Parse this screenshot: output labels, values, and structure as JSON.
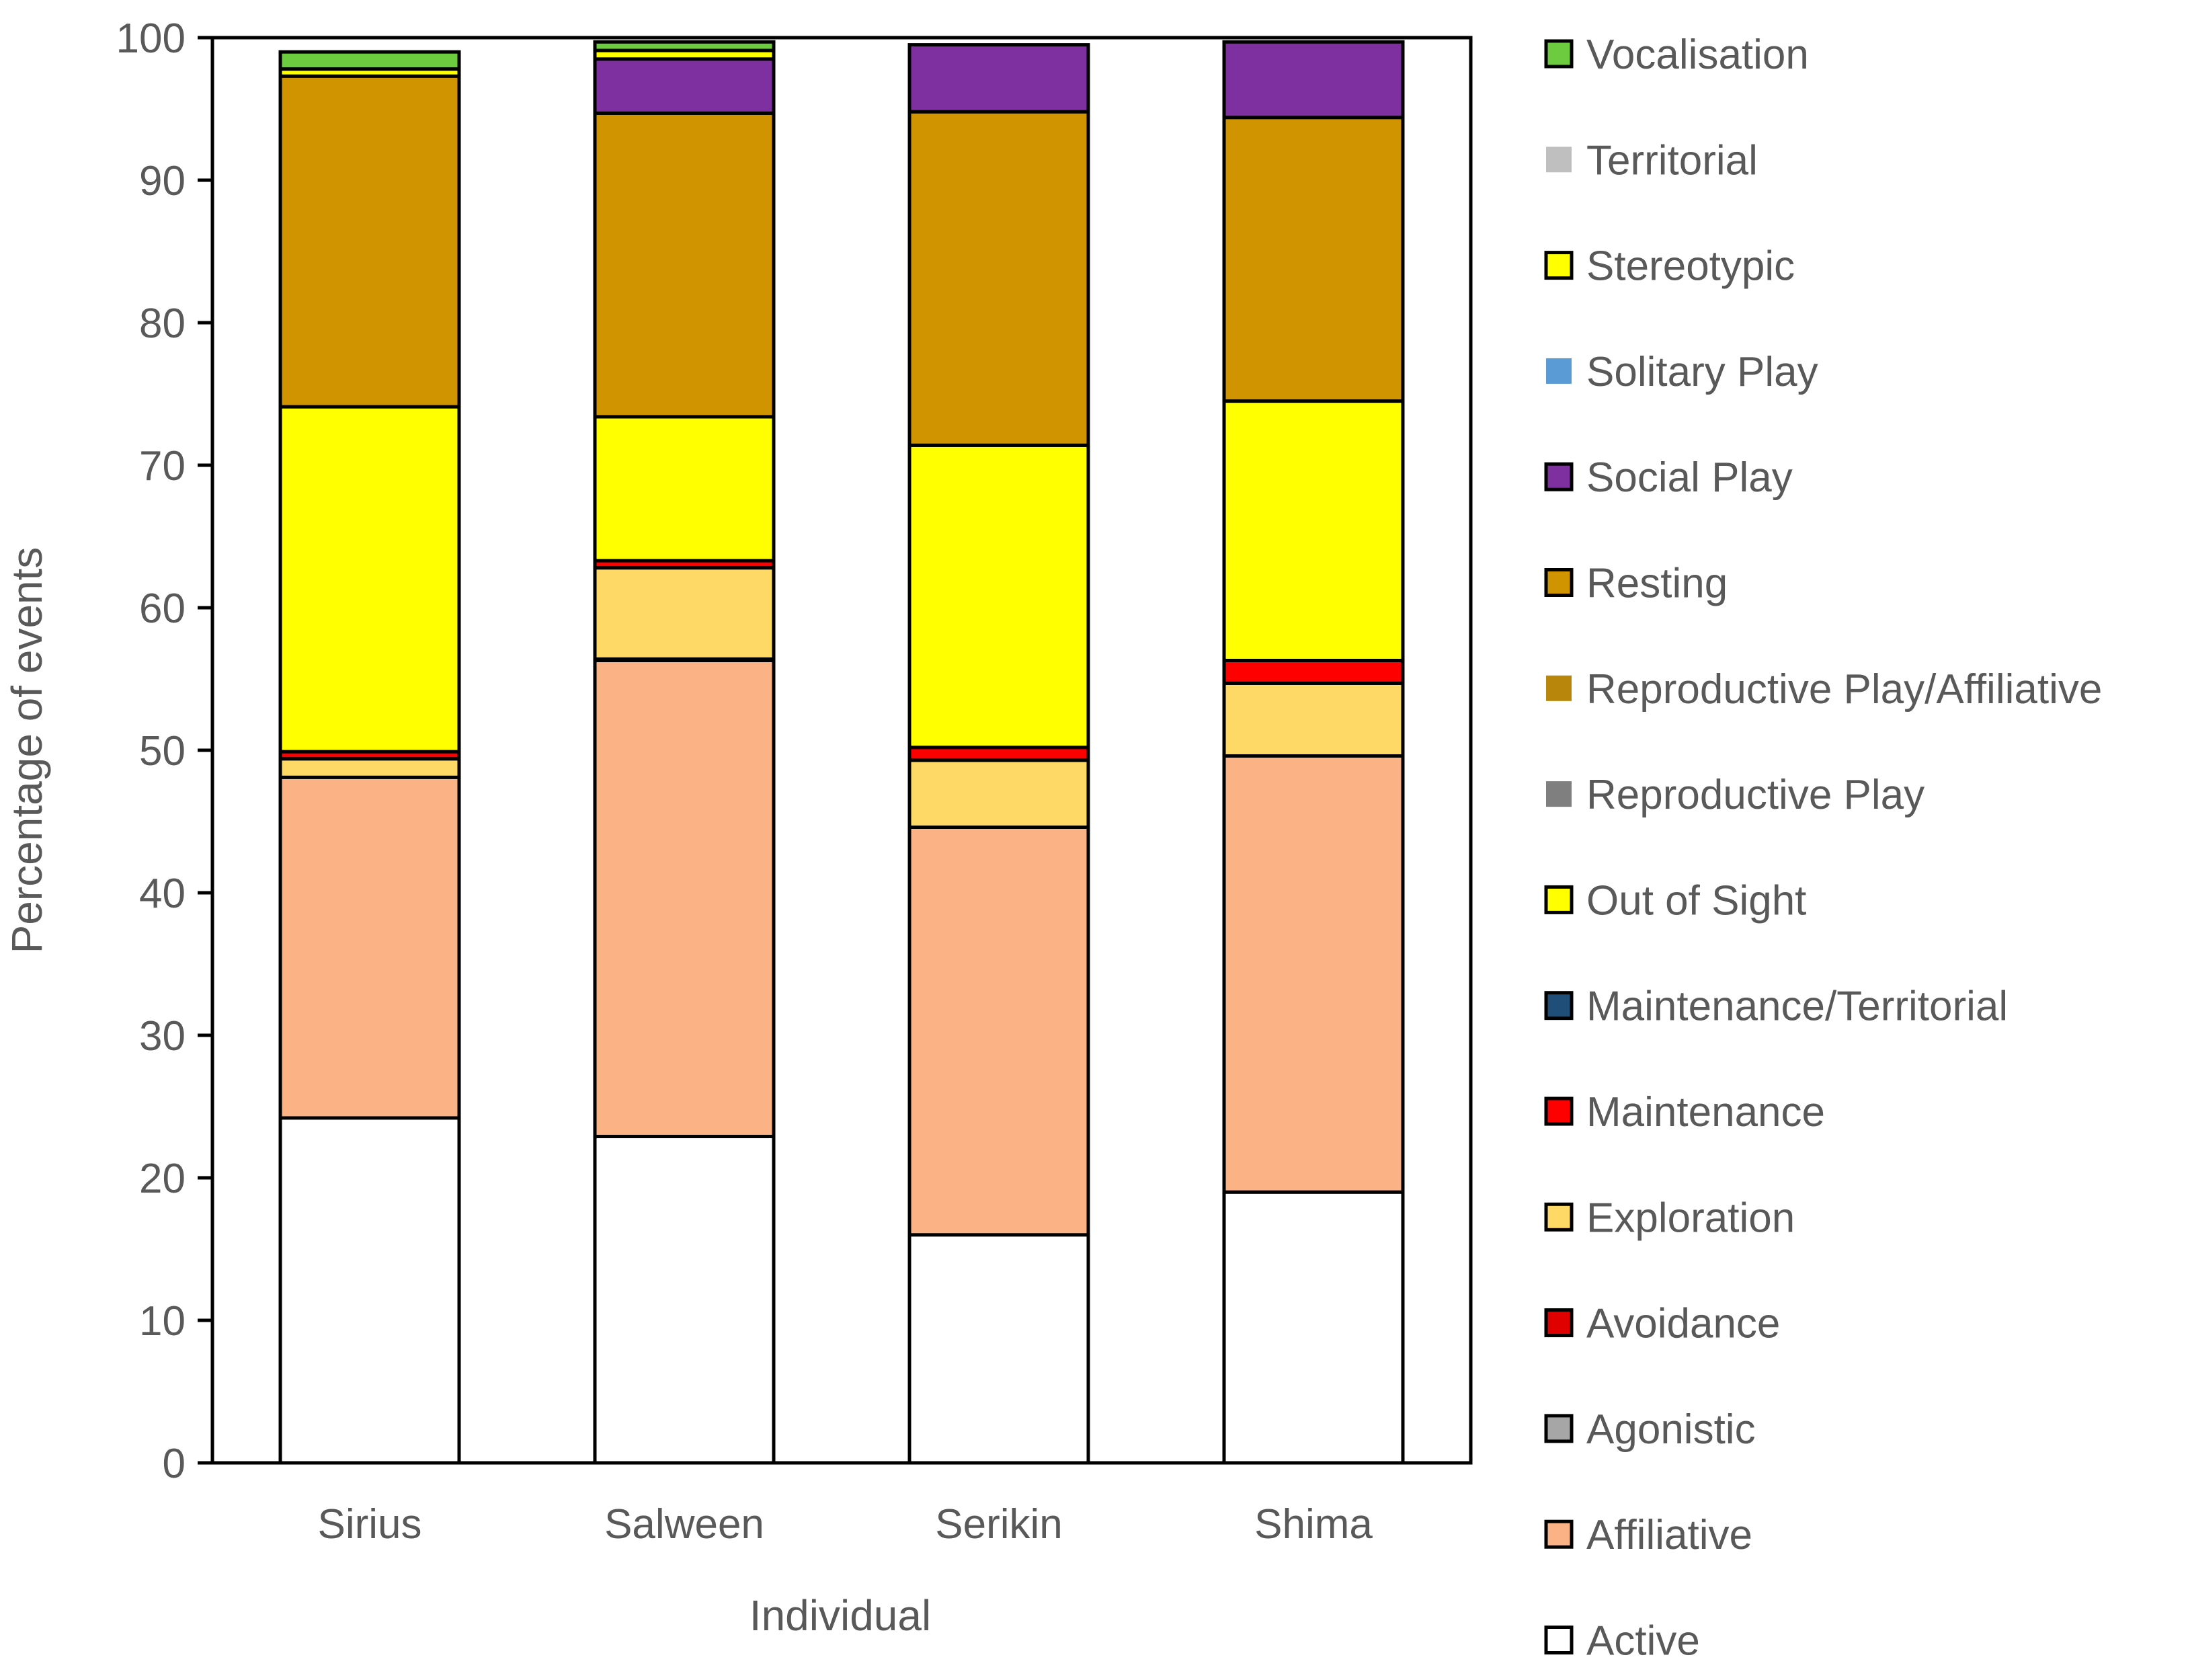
{
  "chart_data": {
    "type": "bar",
    "stacked": true,
    "title": "",
    "xlabel": "Individual",
    "ylabel": "Percentage of events",
    "ylim": [
      0,
      100
    ],
    "yticks": [
      0,
      10,
      20,
      30,
      40,
      50,
      60,
      70,
      80,
      90,
      100
    ],
    "grid": false,
    "legend_position": "right",
    "categories": [
      "Sirius",
      "Salween",
      "Serikin",
      "Shima"
    ],
    "series": [
      {
        "name": "Active",
        "color": "#ffffff",
        "values": [
          24.2,
          22.9,
          16.0,
          19.0
        ]
      },
      {
        "name": "Affiliative",
        "color": "#fbb284",
        "values": [
          23.9,
          33.4,
          28.6,
          30.6
        ]
      },
      {
        "name": "Agonistic",
        "color": "#a6a6a6",
        "values": [
          0.0,
          0.0,
          0.0,
          0.0
        ]
      },
      {
        "name": "Avoidance",
        "color": "#e00000",
        "values": [
          0.0,
          0.1,
          0.0,
          0.0
        ]
      },
      {
        "name": "Exploration",
        "color": "#ffd966",
        "values": [
          1.3,
          6.4,
          4.7,
          5.1
        ]
      },
      {
        "name": "Maintenance",
        "color": "#ff0000",
        "values": [
          0.5,
          0.5,
          0.9,
          1.6
        ]
      },
      {
        "name": "Maintenance/Territorial",
        "color": "#1f4e79",
        "values": [
          0.0,
          0.0,
          0.0,
          0.0
        ]
      },
      {
        "name": "Out of Sight",
        "color": "#ffff00",
        "values": [
          24.2,
          10.1,
          21.2,
          18.2
        ]
      },
      {
        "name": "Reproductive Play",
        "color": "#7f7f7f",
        "values": [
          0.0,
          0.0,
          0.0,
          0.0
        ]
      },
      {
        "name": "Reproductive Play/Affiliative",
        "color": "#b8860b",
        "values": [
          0.0,
          0.0,
          0.0,
          0.0
        ]
      },
      {
        "name": "Resting",
        "color": "#d09400",
        "values": [
          23.2,
          21.3,
          23.4,
          19.9
        ]
      },
      {
        "name": "Social Play",
        "color": "#7f30a0",
        "values": [
          0.0,
          3.8,
          4.7,
          5.3
        ]
      },
      {
        "name": "Solitary Play",
        "color": "#5b9bd5",
        "values": [
          0.0,
          0.0,
          0.0,
          0.0
        ]
      },
      {
        "name": "Stereotypic",
        "color": "#ffff00",
        "values": [
          0.5,
          0.6,
          0.0,
          0.0
        ]
      },
      {
        "name": "Territorial",
        "color": "#bfbfbf",
        "values": [
          0.0,
          0.0,
          0.0,
          0.0
        ]
      },
      {
        "name": "Vocalisation",
        "color": "#6ccb3f",
        "values": [
          1.2,
          0.6,
          0.0,
          0.0
        ]
      }
    ],
    "legend_order": [
      "Vocalisation",
      "Territorial",
      "Stereotypic",
      "Solitary Play",
      "Social Play",
      "Resting",
      "Reproductive Play/Affiliative",
      "Reproductive Play",
      "Out of Sight",
      "Maintenance/Territorial",
      "Maintenance",
      "Exploration",
      "Avoidance",
      "Agonistic",
      "Affiliative",
      "Active"
    ]
  }
}
